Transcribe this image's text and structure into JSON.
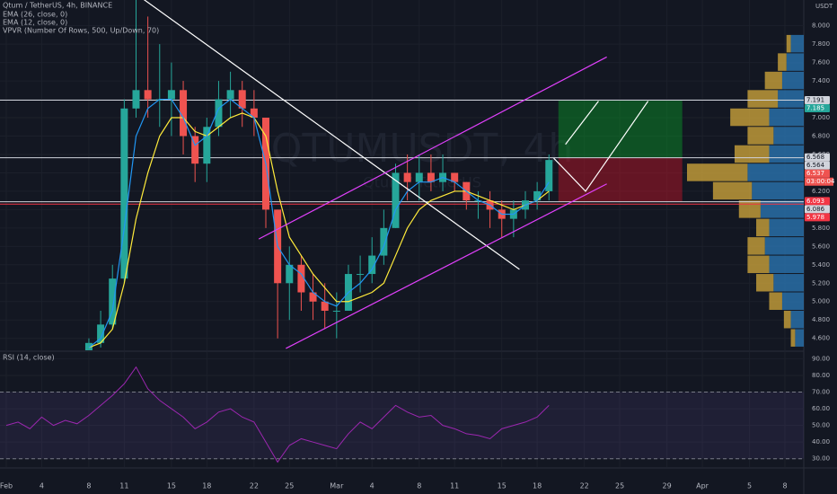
{
  "header": {
    "symbol": "Qtum / TetherUS, 4h, BINANCE",
    "indicators": [
      "EMA (26, close, 0)",
      "EMA (12, close, 0)",
      "VPVR (Number Of Rows, 500, Up/Down, 70)"
    ],
    "currency": "USDT",
    "watermark": "QTUMUSDT, 4h",
    "watermark_sub": "Qtum / TetherUS"
  },
  "chart_data": [
    {
      "type": "candlestick",
      "up_color": "#26a69a",
      "down_color": "#ef5350",
      "x": [
        7,
        8,
        9,
        10,
        11,
        12,
        13,
        14,
        15,
        16,
        17,
        18,
        19,
        20,
        21,
        22,
        23,
        24,
        25,
        26,
        27,
        28,
        29,
        30,
        31,
        32,
        33,
        34,
        35,
        36,
        37,
        38,
        39,
        40,
        41,
        42,
        43,
        44,
        45,
        46
      ],
      "open": [
        4.45,
        4.55,
        4.75,
        5.25,
        7.1,
        7.3,
        7.2,
        7.2,
        7.3,
        6.8,
        6.5,
        6.9,
        7.2,
        7.3,
        7.1,
        7.0,
        6.0,
        5.2,
        5.4,
        5.1,
        5.0,
        4.9,
        4.9,
        5.3,
        5.3,
        5.5,
        5.8,
        6.4,
        6.3,
        6.4,
        6.3,
        6.4,
        6.3,
        6.1,
        6.1,
        6.0,
        5.9,
        6.0,
        6.1,
        6.2
      ],
      "high": [
        4.6,
        4.9,
        5.4,
        7.2,
        8.3,
        8.1,
        7.8,
        7.6,
        7.4,
        6.9,
        7.0,
        7.4,
        7.5,
        7.4,
        7.3,
        7.0,
        6.0,
        5.6,
        5.5,
        5.3,
        5.2,
        5.1,
        5.4,
        5.5,
        5.7,
        6.0,
        6.5,
        6.6,
        6.6,
        6.6,
        6.6,
        6.4,
        6.3,
        6.2,
        6.2,
        6.1,
        6.1,
        6.2,
        6.3,
        6.6
      ],
      "low": [
        4.4,
        4.5,
        4.7,
        5.2,
        7.0,
        7.0,
        6.9,
        6.8,
        6.6,
        6.3,
        6.3,
        6.8,
        7.0,
        6.9,
        6.8,
        5.8,
        4.6,
        4.8,
        4.9,
        4.8,
        4.7,
        4.6,
        4.9,
        5.1,
        5.2,
        5.4,
        5.8,
        6.1,
        6.1,
        6.2,
        6.2,
        6.2,
        6.0,
        5.9,
        5.8,
        5.7,
        5.7,
        5.9,
        6.0,
        6.1
      ],
      "close": [
        4.55,
        4.75,
        5.25,
        7.1,
        7.3,
        7.2,
        7.2,
        7.3,
        6.8,
        6.5,
        6.9,
        7.2,
        7.3,
        7.1,
        7.0,
        6.0,
        5.2,
        5.4,
        5.1,
        5.0,
        4.9,
        4.9,
        5.3,
        5.3,
        5.5,
        5.8,
        6.4,
        6.3,
        6.4,
        6.3,
        6.4,
        6.3,
        6.1,
        6.1,
        6.0,
        5.9,
        6.0,
        6.1,
        6.2,
        6.54
      ],
      "series": [
        {
          "name": "EMA (26, close, 0)",
          "color": "#ffeb3b",
          "values": [
            4.5,
            4.55,
            4.7,
            5.2,
            5.9,
            6.4,
            6.8,
            7.0,
            7.0,
            6.85,
            6.8,
            6.9,
            7.0,
            7.05,
            7.0,
            6.8,
            6.2,
            5.7,
            5.5,
            5.3,
            5.15,
            5.0,
            5.0,
            5.05,
            5.1,
            5.2,
            5.5,
            5.8,
            6.0,
            6.1,
            6.15,
            6.2,
            6.2,
            6.15,
            6.1,
            6.05,
            6.0,
            6.05,
            6.1,
            6.2
          ]
        },
        {
          "name": "EMA (12, close, 0)",
          "color": "#2196f3",
          "values": [
            4.5,
            4.6,
            4.9,
            5.8,
            6.8,
            7.1,
            7.2,
            7.2,
            7.0,
            6.7,
            6.8,
            7.1,
            7.2,
            7.1,
            7.0,
            6.5,
            5.6,
            5.4,
            5.3,
            5.1,
            5.0,
            4.95,
            5.1,
            5.2,
            5.35,
            5.6,
            6.0,
            6.2,
            6.3,
            6.3,
            6.35,
            6.3,
            6.2,
            6.1,
            6.05,
            5.95,
            5.95,
            6.05,
            6.1,
            6.3
          ]
        }
      ],
      "xlim": [
        -0.5,
        67.5
      ],
      "xticks": [
        {
          "value": 0,
          "label": "Feb"
        },
        {
          "value": 3,
          "label": "4"
        },
        {
          "value": 7,
          "label": "8"
        },
        {
          "value": 10,
          "label": "11"
        },
        {
          "value": 14,
          "label": "15"
        },
        {
          "value": 17,
          "label": "18"
        },
        {
          "value": 21,
          "label": "22"
        },
        {
          "value": 24,
          "label": "25"
        },
        {
          "value": 28,
          "label": "Mar"
        },
        {
          "value": 31,
          "label": "4"
        },
        {
          "value": 35,
          "label": "8"
        },
        {
          "value": 38,
          "label": "11"
        },
        {
          "value": 42,
          "label": "15"
        },
        {
          "value": 45,
          "label": "18"
        },
        {
          "value": 49,
          "label": "22"
        },
        {
          "value": 52,
          "label": "25"
        },
        {
          "value": 56,
          "label": "29"
        },
        {
          "value": 59,
          "label": "Apr"
        },
        {
          "value": 63,
          "label": "5"
        },
        {
          "value": 66,
          "label": "8"
        }
      ],
      "ylim": [
        4.47,
        8.28
      ],
      "yticks": [
        {
          "value": 4.6,
          "label": "4.600"
        },
        {
          "value": 4.8,
          "label": "4.800"
        },
        {
          "value": 5.0,
          "label": "5.000"
        },
        {
          "value": 5.2,
          "label": "5.200"
        },
        {
          "value": 5.4,
          "label": "5.400"
        },
        {
          "value": 5.6,
          "label": "5.600"
        },
        {
          "value": 5.8,
          "label": "5.800"
        },
        {
          "value": 6.0,
          "label": "6.000"
        },
        {
          "value": 6.2,
          "label": "6.200"
        },
        {
          "value": 6.4,
          "label": "6.400"
        },
        {
          "value": 6.6,
          "label": "6.600"
        },
        {
          "value": 6.8,
          "label": "6.800"
        },
        {
          "value": 7.0,
          "label": "7.000"
        },
        {
          "value": 7.2,
          "label": "7.200"
        },
        {
          "value": 7.4,
          "label": "7.400"
        },
        {
          "value": 7.6,
          "label": "7.600"
        },
        {
          "value": 7.8,
          "label": "7.800"
        },
        {
          "value": 8.0,
          "label": "8.000"
        }
      ],
      "grid": true,
      "hlines": [
        {
          "value": 7.191,
          "color": "#d1d4dc"
        },
        {
          "value": 6.564,
          "color": "#d1d4dc"
        },
        {
          "value": 6.086,
          "color": "#d1d4dc"
        },
        {
          "value": 6.06,
          "color": "#f23645"
        }
      ],
      "price_tags": [
        {
          "value": 7.191,
          "label": "7.191",
          "color": "#d1d4dc"
        },
        {
          "value": 7.185,
          "label": "7.185",
          "color": "#26a69a"
        },
        {
          "value": 6.568,
          "label": "6.568",
          "color": "#d1d4dc"
        },
        {
          "value": 6.564,
          "label": "6.564",
          "color": "#d1d4dc"
        },
        {
          "value": 6.537,
          "label": "6.537",
          "color": "#ef5350"
        },
        {
          "value": 6.086,
          "label": "6.086",
          "color": "#d1d4dc"
        },
        {
          "value": 5.978,
          "label": "5.978",
          "color": "#f23645"
        },
        {
          "value": 6.093,
          "label": "6.093",
          "color": "#f23645"
        }
      ],
      "countdown": "03:00:04",
      "trendlines": [
        {
          "x": [
            11.5,
            43.5
          ],
          "y": [
            8.3,
            5.35
          ],
          "color": "#ffffff"
        },
        {
          "x": [
            21.4,
            50.9
          ],
          "y": [
            5.68,
            7.66
          ],
          "color": "#e040fb"
        },
        {
          "x": [
            23.7,
            50.9
          ],
          "y": [
            4.49,
            6.28
          ],
          "color": "#e040fb"
        },
        {
          "x": [
            46.4,
            49.1,
            54.4
          ],
          "y": [
            6.56,
            6.2,
            7.18
          ],
          "color": "#ffffff"
        },
        {
          "x": [
            47.4,
            50.2
          ],
          "y": [
            6.71,
            7.18
          ],
          "color": "#ffffff"
        }
      ],
      "position": {
        "x": [
          46.8,
          57.3
        ],
        "target": 7.185,
        "entry": 6.564,
        "stop": 6.086
      },
      "volume_profile": {
        "levels": [
          4.6,
          4.8,
          5.0,
          5.2,
          5.4,
          5.6,
          5.8,
          6.0,
          6.2,
          6.4,
          6.6,
          6.8,
          7.0,
          7.2,
          7.4,
          7.6,
          7.8
        ],
        "up": [
          5,
          8,
          15,
          20,
          25,
          20,
          15,
          25,
          45,
          70,
          40,
          30,
          45,
          35,
          20,
          10,
          5
        ],
        "down": [
          10,
          15,
          25,
          35,
          40,
          45,
          40,
          50,
          60,
          65,
          40,
          35,
          40,
          30,
          25,
          20,
          15
        ],
        "up_color": "#c9a13b",
        "down_color": "#2a74b0"
      }
    },
    {
      "type": "line",
      "title": "RSI (14, close)",
      "color": "#9c27b0",
      "x": [
        0,
        1,
        2,
        3,
        4,
        5,
        6,
        7,
        8,
        9,
        10,
        11,
        12,
        13,
        14,
        15,
        16,
        17,
        18,
        19,
        20,
        21,
        22,
        23,
        24,
        25,
        26,
        27,
        28,
        29,
        30,
        31,
        32,
        33,
        34,
        35,
        36,
        37,
        38,
        39,
        40,
        41,
        42,
        43,
        44,
        45,
        46
      ],
      "values": [
        50,
        52,
        48,
        55,
        50,
        53,
        51,
        56,
        62,
        68,
        75,
        85,
        72,
        65,
        60,
        55,
        48,
        52,
        58,
        60,
        55,
        52,
        40,
        28,
        38,
        42,
        40,
        38,
        36,
        45,
        52,
        48,
        55,
        62,
        58,
        55,
        56,
        50,
        48,
        45,
        44,
        42,
        48,
        50,
        52,
        55,
        62
      ],
      "band": [
        30,
        70
      ],
      "ylim": [
        25,
        94
      ],
      "yticks": [
        {
          "value": 30,
          "label": "30.00"
        },
        {
          "value": 40,
          "label": "40.00"
        },
        {
          "value": 50,
          "label": "50.00"
        },
        {
          "value": 60,
          "label": "60.00"
        },
        {
          "value": 70,
          "label": "70.00"
        },
        {
          "value": 80,
          "label": "80.00"
        },
        {
          "value": 90,
          "label": "90.00"
        }
      ]
    }
  ]
}
